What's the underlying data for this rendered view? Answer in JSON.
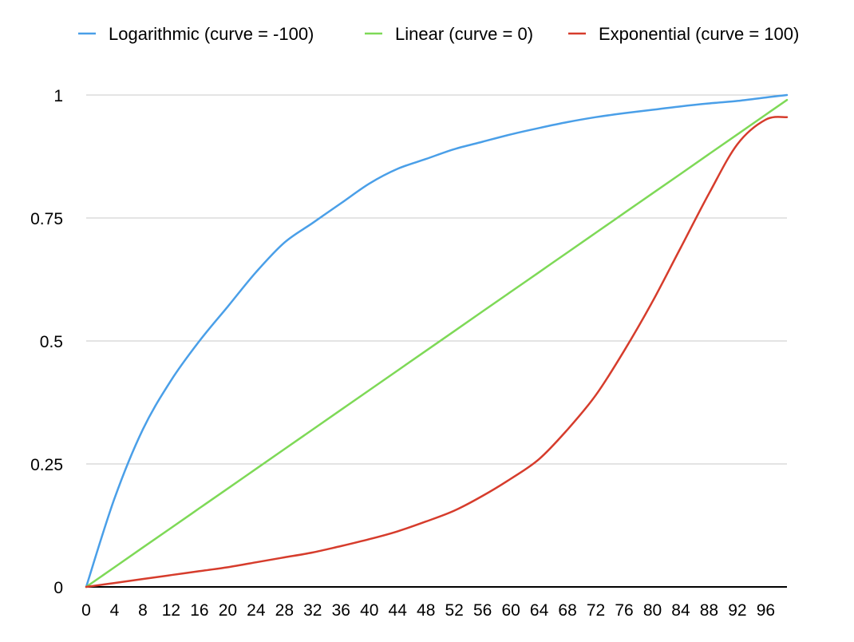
{
  "chart_data": {
    "type": "line",
    "title": "",
    "xlabel": "",
    "ylabel": "",
    "grid": true,
    "legend_position": "top",
    "xlim": [
      0,
      99
    ],
    "ylim": [
      0,
      1
    ],
    "x_ticks": [
      "0",
      "4",
      "8",
      "12",
      "16",
      "20",
      "24",
      "28",
      "32",
      "36",
      "40",
      "44",
      "48",
      "52",
      "56",
      "60",
      "64",
      "68",
      "72",
      "76",
      "80",
      "84",
      "88",
      "92",
      "96"
    ],
    "y_ticks": [
      "0",
      "0.25",
      "0.5",
      "0.75",
      "1"
    ],
    "y_tick_values": [
      0,
      0.25,
      0.5,
      0.75,
      1
    ],
    "x": [
      0,
      4,
      8,
      12,
      16,
      20,
      24,
      28,
      32,
      36,
      40,
      44,
      48,
      52,
      56,
      60,
      64,
      68,
      72,
      76,
      80,
      84,
      88,
      92,
      96,
      99
    ],
    "series": [
      {
        "name": "Logarithmic (curve = -100)",
        "color": "#4a9fe8",
        "values": [
          0,
          0.18,
          0.32,
          0.42,
          0.5,
          0.57,
          0.64,
          0.7,
          0.74,
          0.78,
          0.82,
          0.85,
          0.87,
          0.89,
          0.905,
          0.92,
          0.933,
          0.945,
          0.955,
          0.963,
          0.97,
          0.977,
          0.983,
          0.988,
          0.995,
          1.0
        ]
      },
      {
        "name": "Linear (curve = 0)",
        "color": "#7ed957",
        "values": [
          0,
          0.04,
          0.08,
          0.12,
          0.16,
          0.2,
          0.24,
          0.28,
          0.32,
          0.36,
          0.4,
          0.44,
          0.48,
          0.52,
          0.56,
          0.6,
          0.64,
          0.68,
          0.72,
          0.76,
          0.8,
          0.84,
          0.88,
          0.92,
          0.96,
          0.99
        ]
      },
      {
        "name": "Exponential (curve = 100)",
        "color": "#d63c2c",
        "values": [
          0,
          0.008,
          0.016,
          0.024,
          0.032,
          0.04,
          0.05,
          0.06,
          0.07,
          0.083,
          0.097,
          0.113,
          0.133,
          0.155,
          0.185,
          0.22,
          0.26,
          0.32,
          0.39,
          0.48,
          0.58,
          0.69,
          0.8,
          0.9,
          0.95,
          0.955
        ]
      }
    ]
  }
}
